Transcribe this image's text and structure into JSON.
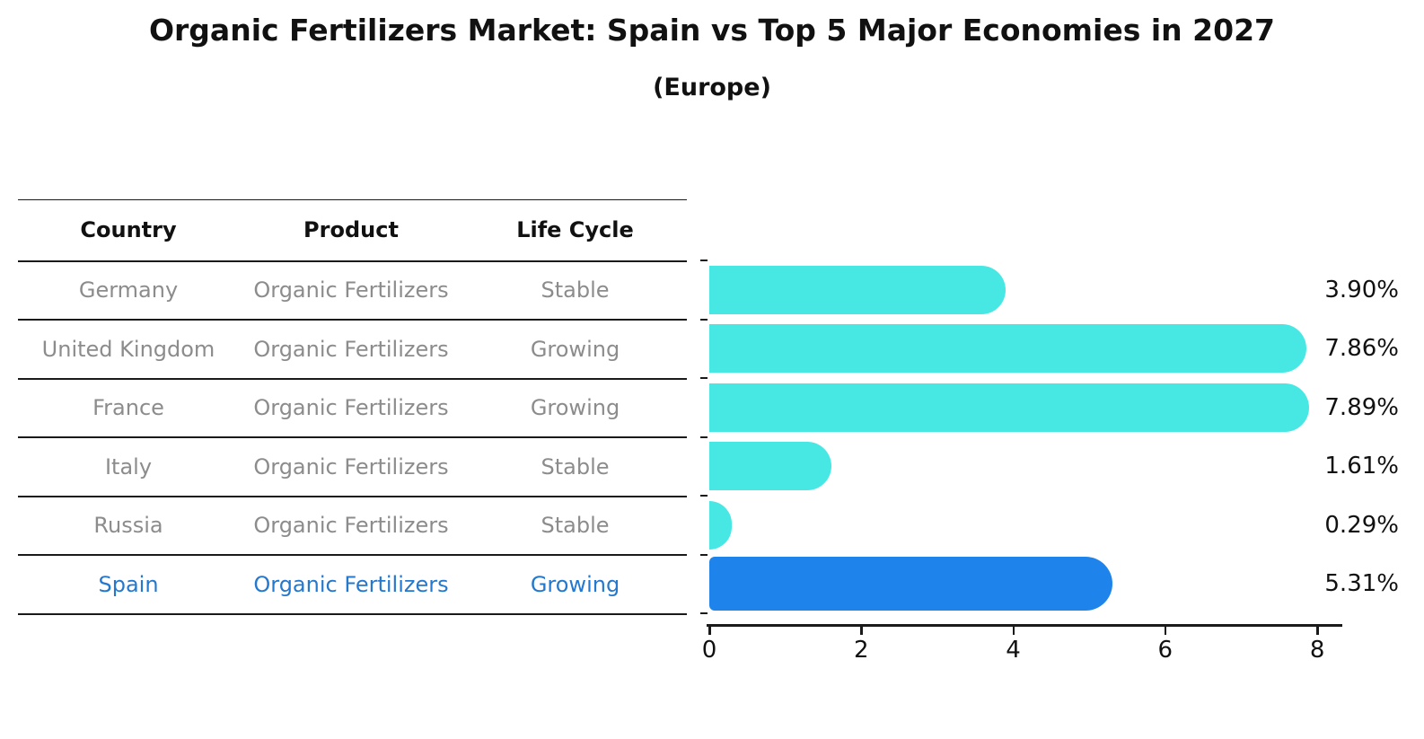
{
  "title": "Organic Fertilizers Market: Spain vs Top 5 Major Economies in 2027",
  "subtitle": "(Europe)",
  "table": {
    "headers": [
      "Country",
      "Product",
      "Life Cycle"
    ],
    "rows": [
      {
        "country": "Germany",
        "product": "Organic Fertilizers",
        "life_cycle": "Stable",
        "highlighted": false
      },
      {
        "country": "United Kingdom",
        "product": "Organic Fertilizers",
        "life_cycle": "Growing",
        "highlighted": false
      },
      {
        "country": "France",
        "product": "Organic Fertilizers",
        "life_cycle": "Growing",
        "highlighted": false
      },
      {
        "country": "Italy",
        "product": "Organic Fertilizers",
        "life_cycle": "Stable",
        "highlighted": false
      },
      {
        "country": "Russia",
        "product": "Organic Fertilizers",
        "life_cycle": "Stable",
        "highlighted": false
      },
      {
        "country": "Spain",
        "product": "Organic Fertilizers",
        "life_cycle": "Growing",
        "highlighted": true
      }
    ]
  },
  "chart_data": {
    "type": "bar",
    "orientation": "horizontal",
    "title": "Organic Fertilizers Market: Spain vs Top 5 Major Economies in 2027",
    "subtitle": "(Europe)",
    "categories": [
      "Germany",
      "United Kingdom",
      "France",
      "Italy",
      "Russia",
      "Spain"
    ],
    "values": [
      3.9,
      7.86,
      7.89,
      1.61,
      0.29,
      5.31
    ],
    "value_labels": [
      "3.90%",
      "7.86%",
      "7.89%",
      "1.61%",
      "0.29%",
      "5.31%"
    ],
    "xticks": [
      0,
      2,
      4,
      6,
      8
    ],
    "xlim": [
      0,
      8.2
    ],
    "grid": false,
    "legend": false,
    "highlight_category": "Spain",
    "colors": {
      "bar": "#47e8e4",
      "highlight_bar": "#1e84ec",
      "highlight_text": "#2478cd",
      "text": "#111111",
      "muted_text": "#8c8c8c",
      "axis": "#1a1a1a"
    }
  }
}
